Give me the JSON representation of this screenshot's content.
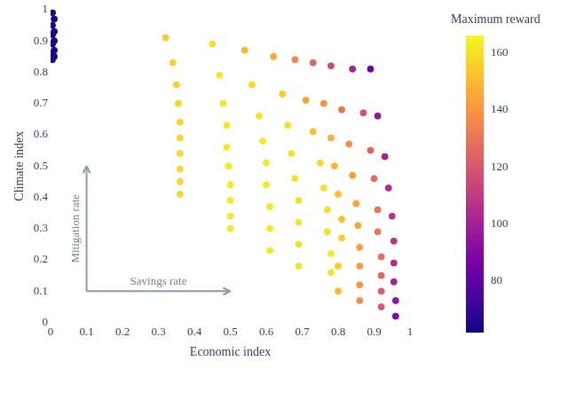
{
  "chart_data": {
    "type": "scatter",
    "x_label": "Economic index",
    "y_label": "Climate index",
    "xlim": [
      0,
      1
    ],
    "ylim": [
      0,
      1
    ],
    "xticks": [
      0,
      0.1,
      0.2,
      0.3,
      0.4,
      0.5,
      0.6,
      0.7,
      0.8,
      0.9,
      1
    ],
    "yticks": [
      0,
      0.1,
      0.2,
      0.3,
      0.4,
      0.5,
      0.6,
      0.7,
      0.8,
      0.9,
      1
    ],
    "grid": false,
    "x": [
      0.005,
      0.01,
      0.005,
      0.01,
      0.005,
      0.01,
      0.005,
      0.01,
      0.005,
      0.01,
      0.005,
      0.32,
      0.34,
      0.35,
      0.355,
      0.36,
      0.36,
      0.36,
      0.36,
      0.36,
      0.36,
      0.45,
      0.47,
      0.48,
      0.49,
      0.49,
      0.495,
      0.5,
      0.5,
      0.5,
      0.5,
      0.54,
      0.56,
      0.58,
      0.59,
      0.6,
      0.6,
      0.61,
      0.61,
      0.61,
      0.62,
      0.645,
      0.66,
      0.67,
      0.68,
      0.69,
      0.69,
      0.69,
      0.69,
      0.68,
      0.71,
      0.73,
      0.75,
      0.76,
      0.77,
      0.77,
      0.78,
      0.78,
      0.73,
      0.76,
      0.78,
      0.79,
      0.8,
      0.81,
      0.81,
      0.8,
      0.8,
      0.78,
      0.81,
      0.83,
      0.84,
      0.85,
      0.855,
      0.86,
      0.86,
      0.86,
      0.86,
      0.84,
      0.87,
      0.89,
      0.9,
      0.91,
      0.91,
      0.92,
      0.92,
      0.92,
      0.92,
      0.89,
      0.91,
      0.93,
      0.94,
      0.95,
      0.955,
      0.955,
      0.955,
      0.96,
      0.96
    ],
    "y": [
      0.99,
      0.97,
      0.95,
      0.93,
      0.92,
      0.9,
      0.89,
      0.87,
      0.86,
      0.85,
      0.84,
      0.91,
      0.83,
      0.76,
      0.7,
      0.64,
      0.59,
      0.54,
      0.49,
      0.45,
      0.41,
      0.89,
      0.79,
      0.7,
      0.63,
      0.56,
      0.5,
      0.44,
      0.39,
      0.34,
      0.3,
      0.87,
      0.76,
      0.66,
      0.58,
      0.51,
      0.44,
      0.37,
      0.3,
      0.23,
      0.85,
      0.73,
      0.63,
      0.54,
      0.46,
      0.39,
      0.32,
      0.25,
      0.18,
      0.84,
      0.71,
      0.61,
      0.51,
      0.43,
      0.36,
      0.29,
      0.22,
      0.16,
      0.83,
      0.7,
      0.59,
      0.5,
      0.41,
      0.33,
      0.27,
      0.18,
      0.1,
      0.82,
      0.68,
      0.57,
      0.47,
      0.38,
      0.31,
      0.24,
      0.18,
      0.12,
      0.07,
      0.81,
      0.67,
      0.55,
      0.46,
      0.36,
      0.29,
      0.21,
      0.15,
      0.1,
      0.05,
      0.81,
      0.66,
      0.53,
      0.43,
      0.34,
      0.26,
      0.19,
      0.13,
      0.07,
      0.02
    ],
    "reward": [
      65,
      66,
      65,
      66,
      65,
      66,
      65,
      66,
      65,
      66,
      65,
      155,
      157,
      157,
      158,
      158,
      158,
      158,
      158,
      158,
      158,
      160,
      162,
      162,
      162,
      162,
      162,
      162,
      162,
      162,
      162,
      150,
      158,
      162,
      162,
      162,
      162,
      162,
      162,
      162,
      145,
      155,
      160,
      161,
      161,
      161,
      161,
      161,
      161,
      135,
      145,
      152,
      158,
      160,
      160,
      160,
      162,
      162,
      125,
      140,
      148,
      150,
      152,
      153,
      155,
      155,
      150,
      115,
      130,
      138,
      142,
      145,
      145,
      143,
      142,
      140,
      138,
      100,
      118,
      125,
      128,
      130,
      130,
      128,
      126,
      122,
      120,
      85,
      95,
      100,
      105,
      108,
      108,
      104,
      100,
      95,
      90
    ],
    "colorbar": {
      "title": "Maximum reward",
      "range": [
        62,
        166
      ],
      "ticks": [
        80,
        100,
        120,
        140,
        160
      ]
    },
    "annotations": [
      {
        "text": "Mitigation rate",
        "from": [
          0.1,
          0.1
        ],
        "to": [
          0.1,
          0.5
        ]
      },
      {
        "text": "Savings rate",
        "from": [
          0.1,
          0.1
        ],
        "to": [
          0.5,
          0.1
        ]
      }
    ]
  }
}
